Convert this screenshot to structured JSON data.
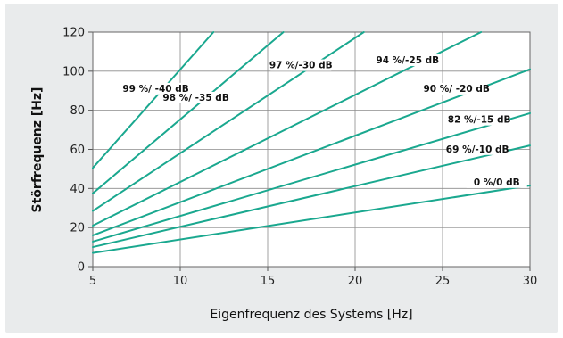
{
  "chart_data": {
    "type": "line",
    "title": "",
    "xlabel": "Eigenfrequenz des Systems [Hz]",
    "ylabel": "Störfrequenz [Hz]",
    "xlim": [
      5,
      30
    ],
    "ylim": [
      0,
      120
    ],
    "x_ticks": [
      "5",
      "10",
      "15",
      "20",
      "25",
      "30"
    ],
    "y_ticks": [
      "0",
      "20",
      "40",
      "60",
      "80",
      "100",
      "120"
    ],
    "grid": true,
    "line_color": "#1aa88f",
    "series": [
      {
        "name": "99 %/ -40 dB",
        "x": [
          5,
          11.9
        ],
        "y": [
          50.5,
          120
        ]
      },
      {
        "name": "98 %/ -35 dB",
        "x": [
          5,
          15.9
        ],
        "y": [
          37.5,
          120
        ]
      },
      {
        "name": "97 %/-30 dB",
        "x": [
          5,
          20.5
        ],
        "y": [
          28.5,
          120
        ]
      },
      {
        "name": "94 %/-25 dB",
        "x": [
          5,
          27.2
        ],
        "y": [
          21,
          120
        ]
      },
      {
        "name": "90 %/ -20 dB",
        "x": [
          5,
          30
        ],
        "y": [
          16,
          101
        ]
      },
      {
        "name": "82 %/-15 dB",
        "x": [
          5,
          30
        ],
        "y": [
          12.8,
          78.5
        ]
      },
      {
        "name": "69 %/-10 dB",
        "x": [
          5,
          30
        ],
        "y": [
          10,
          62
        ]
      },
      {
        "name": "0 %/0 dB",
        "x": [
          5,
          30
        ],
        "y": [
          7,
          41.5
        ]
      }
    ]
  }
}
